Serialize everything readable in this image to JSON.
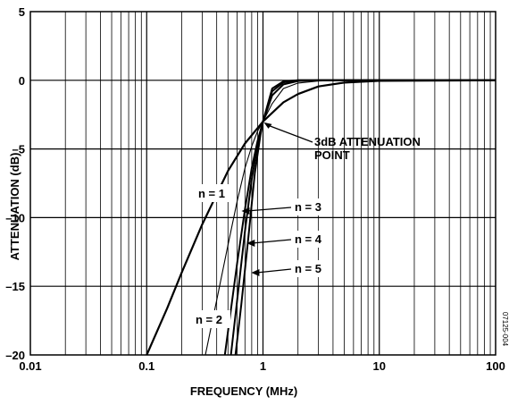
{
  "chart_data": {
    "type": "line",
    "title": "",
    "xlabel": "FREQUENCY (MHz)",
    "ylabel": "ATTENUATION (dB)",
    "xscale": "log",
    "xlim": [
      0.01,
      100
    ],
    "ylim": [
      -20,
      5
    ],
    "grid": true,
    "legend": "none",
    "x_ticks": [
      0.01,
      0.1,
      1,
      10,
      100
    ],
    "x_tick_labels": [
      "0.01",
      "0.1",
      "1",
      "10",
      "100"
    ],
    "y_ticks": [
      5,
      0,
      -5,
      -10,
      -15,
      -20
    ],
    "y_tick_labels": [
      "5",
      "0",
      "–5",
      "–10",
      "–15",
      "–20"
    ],
    "series": [
      {
        "name": "n = 1",
        "points": [
          [
            0.1,
            -20
          ],
          [
            0.15,
            -16.6
          ],
          [
            0.2,
            -14
          ],
          [
            0.3,
            -10.5
          ],
          [
            0.5,
            -6.6
          ],
          [
            0.7,
            -4.6
          ],
          [
            1,
            -3
          ],
          [
            1.5,
            -1.6
          ],
          [
            2,
            -1
          ],
          [
            3,
            -0.45
          ],
          [
            5,
            -0.17
          ],
          [
            10,
            -0.04
          ],
          [
            100,
            0
          ]
        ]
      },
      {
        "name": "n = 2",
        "points": [
          [
            0.32,
            -20
          ],
          [
            0.4,
            -16
          ],
          [
            0.5,
            -12
          ],
          [
            0.6,
            -8.8
          ],
          [
            0.7,
            -6.4
          ],
          [
            0.8,
            -4.8
          ],
          [
            0.9,
            -3.7
          ],
          [
            1,
            -3
          ],
          [
            1.2,
            -1.7
          ],
          [
            1.5,
            -0.6
          ],
          [
            2,
            -0.2
          ],
          [
            3,
            -0.05
          ],
          [
            5,
            0
          ],
          [
            100,
            0
          ]
        ]
      },
      {
        "name": "n = 3",
        "points": [
          [
            0.47,
            -20
          ],
          [
            0.6,
            -13.3
          ],
          [
            0.7,
            -9.4
          ],
          [
            0.8,
            -6.4
          ],
          [
            0.9,
            -4.4
          ],
          [
            1,
            -3
          ],
          [
            1.2,
            -1.1
          ],
          [
            1.5,
            -0.3
          ],
          [
            2,
            -0.05
          ],
          [
            3,
            0
          ],
          [
            100,
            0
          ]
        ]
      },
      {
        "name": "n = 4",
        "points": [
          [
            0.53,
            -20
          ],
          [
            0.6,
            -16
          ],
          [
            0.7,
            -11
          ],
          [
            0.8,
            -7.2
          ],
          [
            0.9,
            -4.7
          ],
          [
            1,
            -3
          ],
          [
            1.2,
            -0.8
          ],
          [
            1.5,
            -0.15
          ],
          [
            2,
            0
          ],
          [
            100,
            0
          ]
        ]
      },
      {
        "name": "n = 5",
        "points": [
          [
            0.58,
            -20
          ],
          [
            0.65,
            -16.4
          ],
          [
            0.75,
            -11.4
          ],
          [
            0.85,
            -6.8
          ],
          [
            0.95,
            -4
          ],
          [
            1,
            -3
          ],
          [
            1.2,
            -0.6
          ],
          [
            1.5,
            -0.08
          ],
          [
            2,
            0
          ],
          [
            100,
            0
          ]
        ]
      }
    ],
    "annotations": [
      {
        "text_lines": [
          "3dB ATTENUATION",
          "POINT"
        ],
        "x": 1,
        "y": -3
      },
      {
        "text": "n = 1",
        "x": 0.5,
        "y": -8
      },
      {
        "text": "n = 2",
        "x": 0.33,
        "y": -17.6
      },
      {
        "text": "n = 3",
        "x": 0.62,
        "y": -9.4
      },
      {
        "text": "n = 4",
        "x": 0.64,
        "y": -11.8
      },
      {
        "text": "n = 5",
        "x": 0.7,
        "y": -14.3
      }
    ],
    "figure_code": "07125-004"
  }
}
